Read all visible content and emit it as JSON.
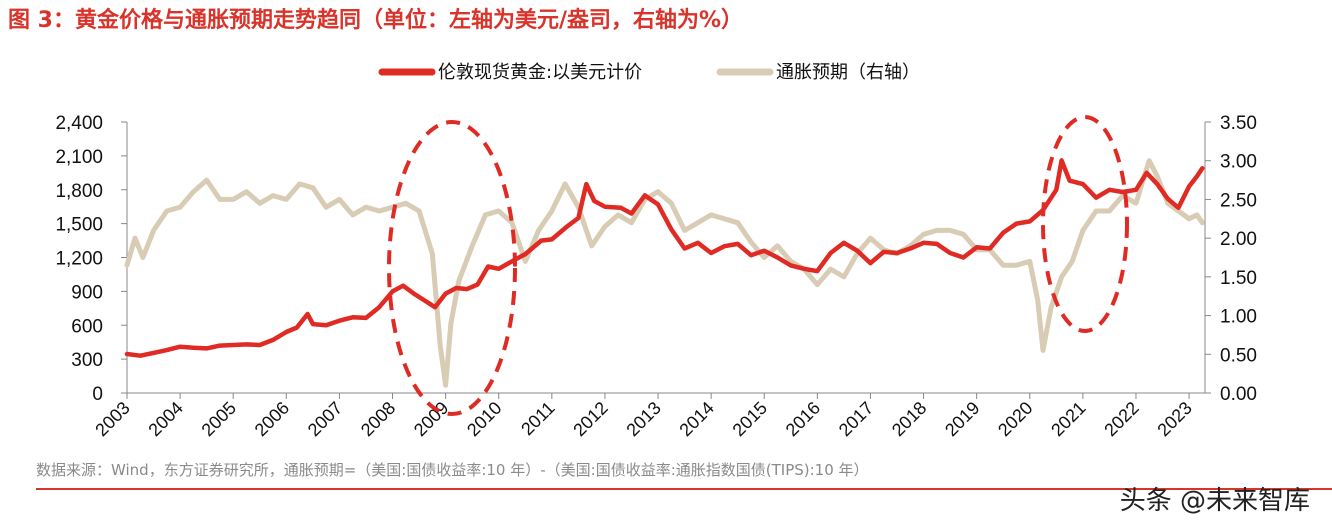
{
  "title": "图 3：黄金价格与通胀预期走势趋同（单位：左轴为美元/盎司，右轴为%）",
  "source": "数据来源：Wind，东方证券研究所，通胀预期=（美国:国债收益率:10 年）-（美国:国债收益率:通胀指数国债(TIPS):10 年）",
  "watermark": "头条 @未来智库",
  "colors": {
    "gold": "#e02a24",
    "inflation": "#d8ccb4",
    "title": "#d9342b",
    "annotation": "#e02a24"
  },
  "chart_data": {
    "type": "line",
    "x_label": "",
    "x_ticks": [
      "2003",
      "2004",
      "2005",
      "2006",
      "2007",
      "2008",
      "2009",
      "2010",
      "2011",
      "2012",
      "2013",
      "2014",
      "2015",
      "2016",
      "2017",
      "2018",
      "2019",
      "2020",
      "2021",
      "2022",
      "2023"
    ],
    "y_left": {
      "label": "",
      "range": [
        0,
        2400
      ],
      "ticks": [
        "0",
        "300",
        "600",
        "900",
        "1,200",
        "1,500",
        "1,800",
        "2,100",
        "2,400"
      ]
    },
    "y_right": {
      "label": "",
      "range": [
        0,
        3.5
      ],
      "ticks": [
        "0.00",
        "0.50",
        "1.00",
        "1.50",
        "2.00",
        "2.50",
        "3.00",
        "3.50"
      ]
    },
    "legend": {
      "position": "top-center",
      "entries": [
        "伦敦现货黄金:以美元计价",
        "通胀预期（右轴）"
      ]
    },
    "grid": false,
    "annotations": [
      "dashed ellipse around 2008-2009",
      "dashed ellipse around 2020-2021"
    ],
    "series": [
      {
        "name": "伦敦现货黄金:以美元计价",
        "axis": "left",
        "color": "#e02a24",
        "points": [
          [
            2003.0,
            345
          ],
          [
            2003.25,
            330
          ],
          [
            2003.5,
            355
          ],
          [
            2003.75,
            380
          ],
          [
            2004.0,
            410
          ],
          [
            2004.25,
            400
          ],
          [
            2004.5,
            395
          ],
          [
            2004.75,
            420
          ],
          [
            2005.0,
            425
          ],
          [
            2005.25,
            430
          ],
          [
            2005.5,
            425
          ],
          [
            2005.75,
            470
          ],
          [
            2006.0,
            540
          ],
          [
            2006.2,
            580
          ],
          [
            2006.4,
            700
          ],
          [
            2006.5,
            610
          ],
          [
            2006.75,
            600
          ],
          [
            2007.0,
            640
          ],
          [
            2007.25,
            670
          ],
          [
            2007.5,
            665
          ],
          [
            2007.75,
            760
          ],
          [
            2008.0,
            900
          ],
          [
            2008.2,
            950
          ],
          [
            2008.4,
            880
          ],
          [
            2008.6,
            820
          ],
          [
            2008.8,
            760
          ],
          [
            2009.0,
            880
          ],
          [
            2009.2,
            930
          ],
          [
            2009.4,
            920
          ],
          [
            2009.6,
            960
          ],
          [
            2009.8,
            1120
          ],
          [
            2010.0,
            1100
          ],
          [
            2010.3,
            1180
          ],
          [
            2010.5,
            1230
          ],
          [
            2010.8,
            1350
          ],
          [
            2011.0,
            1360
          ],
          [
            2011.3,
            1480
          ],
          [
            2011.5,
            1550
          ],
          [
            2011.65,
            1850
          ],
          [
            2011.8,
            1700
          ],
          [
            2012.0,
            1650
          ],
          [
            2012.3,
            1640
          ],
          [
            2012.5,
            1590
          ],
          [
            2012.75,
            1750
          ],
          [
            2013.0,
            1670
          ],
          [
            2013.25,
            1450
          ],
          [
            2013.5,
            1280
          ],
          [
            2013.75,
            1330
          ],
          [
            2014.0,
            1240
          ],
          [
            2014.25,
            1300
          ],
          [
            2014.5,
            1320
          ],
          [
            2014.75,
            1220
          ],
          [
            2015.0,
            1260
          ],
          [
            2015.25,
            1200
          ],
          [
            2015.5,
            1130
          ],
          [
            2015.75,
            1100
          ],
          [
            2016.0,
            1080
          ],
          [
            2016.25,
            1240
          ],
          [
            2016.5,
            1330
          ],
          [
            2016.75,
            1260
          ],
          [
            2017.0,
            1150
          ],
          [
            2017.25,
            1250
          ],
          [
            2017.5,
            1240
          ],
          [
            2017.75,
            1280
          ],
          [
            2018.0,
            1330
          ],
          [
            2018.25,
            1320
          ],
          [
            2018.5,
            1240
          ],
          [
            2018.75,
            1200
          ],
          [
            2019.0,
            1290
          ],
          [
            2019.25,
            1280
          ],
          [
            2019.5,
            1420
          ],
          [
            2019.75,
            1500
          ],
          [
            2020.0,
            1520
          ],
          [
            2020.25,
            1620
          ],
          [
            2020.5,
            1800
          ],
          [
            2020.6,
            2060
          ],
          [
            2020.75,
            1880
          ],
          [
            2021.0,
            1850
          ],
          [
            2021.25,
            1730
          ],
          [
            2021.5,
            1800
          ],
          [
            2021.75,
            1780
          ],
          [
            2022.0,
            1800
          ],
          [
            2022.2,
            1950
          ],
          [
            2022.4,
            1850
          ],
          [
            2022.6,
            1720
          ],
          [
            2022.8,
            1640
          ],
          [
            2023.0,
            1830
          ],
          [
            2023.15,
            1920
          ],
          [
            2023.25,
            1990
          ]
        ]
      },
      {
        "name": "通胀预期（右轴）",
        "axis": "right",
        "color": "#d8ccb4",
        "points": [
          [
            2003.0,
            1.65
          ],
          [
            2003.15,
            2.0
          ],
          [
            2003.3,
            1.75
          ],
          [
            2003.5,
            2.1
          ],
          [
            2003.75,
            2.35
          ],
          [
            2004.0,
            2.4
          ],
          [
            2004.25,
            2.6
          ],
          [
            2004.5,
            2.75
          ],
          [
            2004.75,
            2.5
          ],
          [
            2005.0,
            2.5
          ],
          [
            2005.25,
            2.6
          ],
          [
            2005.5,
            2.45
          ],
          [
            2005.75,
            2.55
          ],
          [
            2006.0,
            2.5
          ],
          [
            2006.25,
            2.7
          ],
          [
            2006.5,
            2.65
          ],
          [
            2006.75,
            2.4
          ],
          [
            2007.0,
            2.5
          ],
          [
            2007.25,
            2.3
          ],
          [
            2007.5,
            2.4
          ],
          [
            2007.75,
            2.35
          ],
          [
            2008.0,
            2.4
          ],
          [
            2008.25,
            2.45
          ],
          [
            2008.5,
            2.35
          ],
          [
            2008.75,
            1.8
          ],
          [
            2008.9,
            0.6
          ],
          [
            2009.0,
            0.1
          ],
          [
            2009.1,
            0.9
          ],
          [
            2009.25,
            1.45
          ],
          [
            2009.5,
            1.9
          ],
          [
            2009.75,
            2.3
          ],
          [
            2010.0,
            2.35
          ],
          [
            2010.25,
            2.2
          ],
          [
            2010.5,
            1.7
          ],
          [
            2010.75,
            2.1
          ],
          [
            2011.0,
            2.35
          ],
          [
            2011.25,
            2.7
          ],
          [
            2011.5,
            2.4
          ],
          [
            2011.75,
            1.9
          ],
          [
            2012.0,
            2.15
          ],
          [
            2012.25,
            2.3
          ],
          [
            2012.5,
            2.2
          ],
          [
            2012.75,
            2.5
          ],
          [
            2013.0,
            2.6
          ],
          [
            2013.25,
            2.45
          ],
          [
            2013.5,
            2.1
          ],
          [
            2013.75,
            2.2
          ],
          [
            2014.0,
            2.3
          ],
          [
            2014.25,
            2.25
          ],
          [
            2014.5,
            2.2
          ],
          [
            2014.75,
            1.95
          ],
          [
            2015.0,
            1.75
          ],
          [
            2015.25,
            1.9
          ],
          [
            2015.5,
            1.7
          ],
          [
            2015.75,
            1.6
          ],
          [
            2016.0,
            1.4
          ],
          [
            2016.25,
            1.6
          ],
          [
            2016.5,
            1.5
          ],
          [
            2016.75,
            1.8
          ],
          [
            2017.0,
            2.0
          ],
          [
            2017.25,
            1.85
          ],
          [
            2017.5,
            1.8
          ],
          [
            2017.75,
            1.9
          ],
          [
            2018.0,
            2.05
          ],
          [
            2018.25,
            2.1
          ],
          [
            2018.5,
            2.1
          ],
          [
            2018.75,
            2.05
          ],
          [
            2019.0,
            1.85
          ],
          [
            2019.25,
            1.85
          ],
          [
            2019.5,
            1.65
          ],
          [
            2019.75,
            1.65
          ],
          [
            2020.0,
            1.7
          ],
          [
            2020.15,
            1.2
          ],
          [
            2020.25,
            0.55
          ],
          [
            2020.4,
            1.1
          ],
          [
            2020.6,
            1.5
          ],
          [
            2020.8,
            1.7
          ],
          [
            2021.0,
            2.1
          ],
          [
            2021.25,
            2.35
          ],
          [
            2021.5,
            2.35
          ],
          [
            2021.75,
            2.55
          ],
          [
            2022.0,
            2.45
          ],
          [
            2022.25,
            3.0
          ],
          [
            2022.4,
            2.8
          ],
          [
            2022.6,
            2.45
          ],
          [
            2022.8,
            2.35
          ],
          [
            2023.0,
            2.25
          ],
          [
            2023.15,
            2.3
          ],
          [
            2023.25,
            2.2
          ]
        ]
      }
    ]
  }
}
